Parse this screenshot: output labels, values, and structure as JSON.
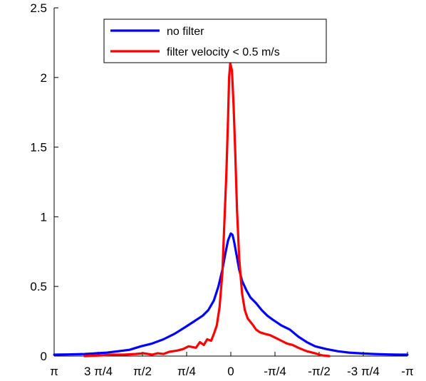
{
  "chart_data": {
    "type": "line",
    "title": "",
    "xlabel": "",
    "ylabel": "",
    "xlim": [
      3.14159,
      -3.14159
    ],
    "ylim": [
      0,
      2.5
    ],
    "grid": false,
    "legend_position": "top-center",
    "x_ticks": [
      {
        "value": 3.14159,
        "label": "π"
      },
      {
        "value": 2.35619,
        "label": "3 π/4"
      },
      {
        "value": 1.5708,
        "label": "π/2"
      },
      {
        "value": 0.7854,
        "label": "π/4"
      },
      {
        "value": 0,
        "label": "0"
      },
      {
        "value": -0.7854,
        "label": "-π/4"
      },
      {
        "value": -1.5708,
        "label": "-π/2"
      },
      {
        "value": -2.35619,
        "label": "-3 π/4"
      },
      {
        "value": -3.14159,
        "label": "-π"
      }
    ],
    "y_ticks": [
      {
        "value": 0,
        "label": "0"
      },
      {
        "value": 0.5,
        "label": "0.5"
      },
      {
        "value": 1,
        "label": "1"
      },
      {
        "value": 1.5,
        "label": "1.5"
      },
      {
        "value": 2,
        "label": "2"
      },
      {
        "value": 2.5,
        "label": "2.5"
      }
    ],
    "series": [
      {
        "name": "no filter",
        "color": "#0000ff",
        "points": [
          [
            3.14,
            0.01
          ],
          [
            2.9,
            0.012
          ],
          [
            2.6,
            0.015
          ],
          [
            2.4,
            0.02
          ],
          [
            2.2,
            0.025
          ],
          [
            2.0,
            0.035
          ],
          [
            1.8,
            0.045
          ],
          [
            1.6,
            0.07
          ],
          [
            1.4,
            0.09
          ],
          [
            1.2,
            0.12
          ],
          [
            1.0,
            0.16
          ],
          [
            0.8,
            0.21
          ],
          [
            0.65,
            0.25
          ],
          [
            0.5,
            0.29
          ],
          [
            0.4,
            0.33
          ],
          [
            0.3,
            0.4
          ],
          [
            0.22,
            0.5
          ],
          [
            0.15,
            0.62
          ],
          [
            0.1,
            0.73
          ],
          [
            0.05,
            0.83
          ],
          [
            0.0,
            0.88
          ],
          [
            -0.03,
            0.87
          ],
          [
            -0.06,
            0.82
          ],
          [
            -0.1,
            0.73
          ],
          [
            -0.15,
            0.62
          ],
          [
            -0.2,
            0.54
          ],
          [
            -0.28,
            0.47
          ],
          [
            -0.35,
            0.42
          ],
          [
            -0.45,
            0.38
          ],
          [
            -0.55,
            0.33
          ],
          [
            -0.65,
            0.29
          ],
          [
            -0.75,
            0.26
          ],
          [
            -0.9,
            0.22
          ],
          [
            -1.05,
            0.19
          ],
          [
            -1.2,
            0.14
          ],
          [
            -1.35,
            0.1
          ],
          [
            -1.5,
            0.07
          ],
          [
            -1.7,
            0.05
          ],
          [
            -1.9,
            0.035
          ],
          [
            -2.1,
            0.025
          ],
          [
            -2.3,
            0.02
          ],
          [
            -2.55,
            0.015
          ],
          [
            -2.8,
            0.012
          ],
          [
            -3.0,
            0.01
          ],
          [
            -3.14,
            0.01
          ]
        ]
      },
      {
        "name": "filter velocity < 0.5 m/s",
        "color": "#ff0000",
        "points": [
          [
            2.6,
            0.0
          ],
          [
            2.3,
            0.005
          ],
          [
            2.1,
            0.01
          ],
          [
            1.9,
            0.01
          ],
          [
            1.7,
            0.015
          ],
          [
            1.55,
            0.02
          ],
          [
            1.4,
            0.01
          ],
          [
            1.3,
            0.02
          ],
          [
            1.2,
            0.015
          ],
          [
            1.1,
            0.03
          ],
          [
            0.95,
            0.04
          ],
          [
            0.85,
            0.05
          ],
          [
            0.75,
            0.07
          ],
          [
            0.62,
            0.06
          ],
          [
            0.55,
            0.1
          ],
          [
            0.48,
            0.08
          ],
          [
            0.42,
            0.12
          ],
          [
            0.35,
            0.11
          ],
          [
            0.3,
            0.16
          ],
          [
            0.25,
            0.22
          ],
          [
            0.2,
            0.35
          ],
          [
            0.15,
            0.6
          ],
          [
            0.12,
            0.9
          ],
          [
            0.08,
            1.3
          ],
          [
            0.05,
            1.7
          ],
          [
            0.03,
            2.0
          ],
          [
            0.01,
            2.1
          ],
          [
            -0.02,
            2.05
          ],
          [
            -0.05,
            1.8
          ],
          [
            -0.08,
            1.45
          ],
          [
            -0.11,
            1.05
          ],
          [
            -0.15,
            0.7
          ],
          [
            -0.2,
            0.45
          ],
          [
            -0.25,
            0.33
          ],
          [
            -0.3,
            0.27
          ],
          [
            -0.38,
            0.23
          ],
          [
            -0.45,
            0.19
          ],
          [
            -0.52,
            0.17
          ],
          [
            -0.6,
            0.16
          ],
          [
            -0.7,
            0.15
          ],
          [
            -0.8,
            0.13
          ],
          [
            -0.9,
            0.11
          ],
          [
            -1.0,
            0.09
          ],
          [
            -1.1,
            0.08
          ],
          [
            -1.2,
            0.06
          ],
          [
            -1.35,
            0.035
          ],
          [
            -1.5,
            0.02
          ],
          [
            -1.62,
            0.005
          ],
          [
            -1.75,
            0.0
          ]
        ]
      }
    ]
  }
}
